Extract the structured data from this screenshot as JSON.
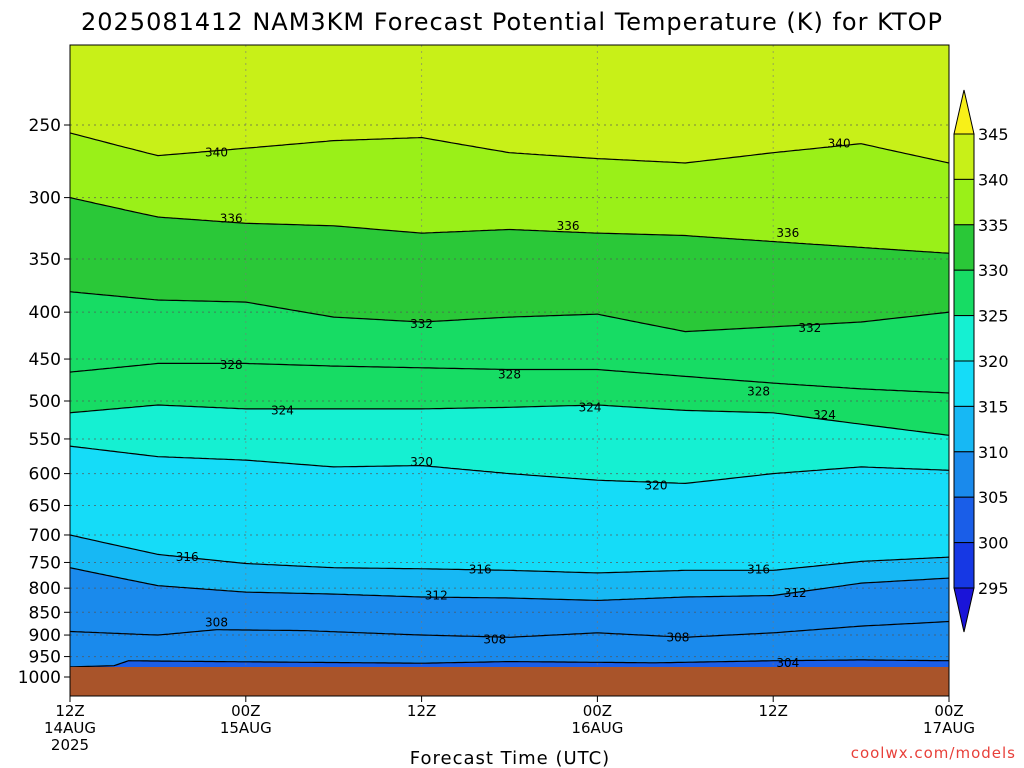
{
  "chart_data": {
    "type": "heatmap",
    "title": "2025081412 NAM3KM Forecast Potential Temperature (K) for KTOP",
    "xlabel": "Forecast Time (UTC)",
    "ylabel": "",
    "credit": "coolwx.com/models",
    "y_scale": "log",
    "ylim": [
      1000,
      200
    ],
    "y_ticks": [
      {
        "value": 250,
        "label": "250"
      },
      {
        "value": 300,
        "label": "300"
      },
      {
        "value": 350,
        "label": "350"
      },
      {
        "value": 400,
        "label": "400"
      },
      {
        "value": 450,
        "label": "450"
      },
      {
        "value": 500,
        "label": "500"
      },
      {
        "value": 550,
        "label": "550"
      },
      {
        "value": 600,
        "label": "600"
      },
      {
        "value": 650,
        "label": "650"
      },
      {
        "value": 700,
        "label": "700"
      },
      {
        "value": 750,
        "label": "750"
      },
      {
        "value": 800,
        "label": "800"
      },
      {
        "value": 850,
        "label": "850"
      },
      {
        "value": 900,
        "label": "900"
      },
      {
        "value": 950,
        "label": "950"
      },
      {
        "value": 1000,
        "label": "1000"
      }
    ],
    "x_range_hours": [
      0,
      60
    ],
    "x_ticks": [
      {
        "hour": 0,
        "line1": "12Z",
        "line2": "14AUG",
        "line3": "2025"
      },
      {
        "hour": 12,
        "line1": "00Z",
        "line2": "15AUG",
        "line3": ""
      },
      {
        "hour": 24,
        "line1": "12Z",
        "line2": "",
        "line3": ""
      },
      {
        "hour": 36,
        "line1": "00Z",
        "line2": "16AUG",
        "line3": ""
      },
      {
        "hour": 48,
        "line1": "12Z",
        "line2": "",
        "line3": ""
      },
      {
        "hour": 60,
        "line1": "00Z",
        "line2": "17AUG",
        "line3": ""
      }
    ],
    "grid": true,
    "colorbar": {
      "levels": [
        "295",
        "300",
        "305",
        "310",
        "315",
        "320",
        "325",
        "330",
        "335",
        "340",
        "345"
      ],
      "colors": [
        "#1a14d8",
        "#1638e4",
        "#1a5ee8",
        "#1a8aec",
        "#17b8f4",
        "#15dcf8",
        "#15f0d2",
        "#17dc64",
        "#2ac838",
        "#9af018",
        "#c8f018",
        "#f8f018"
      ]
    },
    "ground_color": "#a9542a",
    "series": [
      {
        "theta": 304,
        "pressure_by_hour": [
          [
            0,
            975
          ],
          [
            3,
            972
          ],
          [
            4,
            960
          ],
          [
            10,
            962
          ],
          [
            24,
            966
          ],
          [
            30,
            962
          ],
          [
            40,
            965
          ],
          [
            48,
            960
          ],
          [
            54,
            958
          ],
          [
            60,
            960
          ]
        ]
      },
      {
        "theta": 308,
        "pressure_by_hour": [
          [
            0,
            892
          ],
          [
            6,
            900
          ],
          [
            10,
            888
          ],
          [
            16,
            890
          ],
          [
            24,
            900
          ],
          [
            30,
            905
          ],
          [
            36,
            895
          ],
          [
            42,
            905
          ],
          [
            48,
            895
          ],
          [
            54,
            880
          ],
          [
            60,
            870
          ]
        ]
      },
      {
        "theta": 312,
        "pressure_by_hour": [
          [
            0,
            760
          ],
          [
            6,
            795
          ],
          [
            12,
            808
          ],
          [
            18,
            812
          ],
          [
            24,
            818
          ],
          [
            30,
            820
          ],
          [
            36,
            825
          ],
          [
            42,
            818
          ],
          [
            48,
            815
          ],
          [
            54,
            790
          ],
          [
            60,
            780
          ]
        ]
      },
      {
        "theta": 316,
        "pressure_by_hour": [
          [
            0,
            700
          ],
          [
            6,
            735
          ],
          [
            12,
            752
          ],
          [
            18,
            760
          ],
          [
            24,
            762
          ],
          [
            30,
            765
          ],
          [
            36,
            770
          ],
          [
            42,
            765
          ],
          [
            48,
            765
          ],
          [
            54,
            748
          ],
          [
            60,
            740
          ]
        ]
      },
      {
        "theta": 320,
        "pressure_by_hour": [
          [
            0,
            560
          ],
          [
            6,
            575
          ],
          [
            12,
            580
          ],
          [
            18,
            590
          ],
          [
            24,
            588
          ],
          [
            30,
            600
          ],
          [
            36,
            610
          ],
          [
            42,
            615
          ],
          [
            48,
            600
          ],
          [
            54,
            590
          ],
          [
            60,
            595
          ]
        ]
      },
      {
        "theta": 324,
        "pressure_by_hour": [
          [
            0,
            515
          ],
          [
            6,
            505
          ],
          [
            12,
            510
          ],
          [
            18,
            510
          ],
          [
            24,
            510
          ],
          [
            30,
            508
          ],
          [
            36,
            505
          ],
          [
            42,
            512
          ],
          [
            48,
            515
          ],
          [
            54,
            530
          ],
          [
            60,
            545
          ]
        ]
      },
      {
        "theta": 328,
        "pressure_by_hour": [
          [
            0,
            465
          ],
          [
            6,
            455
          ],
          [
            12,
            455
          ],
          [
            18,
            458
          ],
          [
            24,
            460
          ],
          [
            30,
            462
          ],
          [
            36,
            462
          ],
          [
            42,
            470
          ],
          [
            48,
            478
          ],
          [
            54,
            485
          ],
          [
            60,
            490
          ]
        ]
      },
      {
        "theta": 332,
        "pressure_by_hour": [
          [
            0,
            380
          ],
          [
            6,
            388
          ],
          [
            12,
            390
          ],
          [
            18,
            405
          ],
          [
            24,
            410
          ],
          [
            30,
            405
          ],
          [
            36,
            402
          ],
          [
            42,
            420
          ],
          [
            48,
            415
          ],
          [
            54,
            410
          ],
          [
            60,
            400
          ]
        ]
      },
      {
        "theta": 336,
        "pressure_by_hour": [
          [
            0,
            300
          ],
          [
            6,
            315
          ],
          [
            12,
            320
          ],
          [
            18,
            322
          ],
          [
            24,
            328
          ],
          [
            30,
            325
          ],
          [
            36,
            328
          ],
          [
            42,
            330
          ],
          [
            48,
            335
          ],
          [
            54,
            340
          ],
          [
            60,
            345
          ]
        ]
      },
      {
        "theta": 340,
        "pressure_by_hour": [
          [
            0,
            255
          ],
          [
            6,
            270
          ],
          [
            12,
            265
          ],
          [
            18,
            260
          ],
          [
            24,
            258
          ],
          [
            30,
            268
          ],
          [
            36,
            272
          ],
          [
            42,
            275
          ],
          [
            48,
            268
          ],
          [
            54,
            262
          ],
          [
            60,
            275
          ]
        ]
      }
    ],
    "contour_labels": [
      {
        "text": "340",
        "hour": 10,
        "pressure": 268
      },
      {
        "text": "340",
        "hour": 52.5,
        "pressure": 262
      },
      {
        "text": "336",
        "hour": 11,
        "pressure": 316
      },
      {
        "text": "336",
        "hour": 34,
        "pressure": 322
      },
      {
        "text": "336",
        "hour": 49,
        "pressure": 328
      },
      {
        "text": "332",
        "hour": 24,
        "pressure": 412
      },
      {
        "text": "332",
        "hour": 50.5,
        "pressure": 416
      },
      {
        "text": "328",
        "hour": 11,
        "pressure": 457
      },
      {
        "text": "328",
        "hour": 30,
        "pressure": 468
      },
      {
        "text": "328",
        "hour": 47,
        "pressure": 488
      },
      {
        "text": "324",
        "hour": 14.5,
        "pressure": 512
      },
      {
        "text": "324",
        "hour": 35.5,
        "pressure": 508
      },
      {
        "text": "324",
        "hour": 51.5,
        "pressure": 518
      },
      {
        "text": "320",
        "hour": 24,
        "pressure": 583
      },
      {
        "text": "320",
        "hour": 40,
        "pressure": 618
      },
      {
        "text": "316",
        "hour": 8,
        "pressure": 740
      },
      {
        "text": "316",
        "hour": 28,
        "pressure": 763
      },
      {
        "text": "316",
        "hour": 47,
        "pressure": 763
      },
      {
        "text": "312",
        "hour": 25,
        "pressure": 815
      },
      {
        "text": "312",
        "hour": 49.5,
        "pressure": 810
      },
      {
        "text": "308",
        "hour": 10,
        "pressure": 872
      },
      {
        "text": "308",
        "hour": 29,
        "pressure": 910
      },
      {
        "text": "308",
        "hour": 41.5,
        "pressure": 905
      },
      {
        "text": "304",
        "hour": 49,
        "pressure": 965
      }
    ]
  }
}
